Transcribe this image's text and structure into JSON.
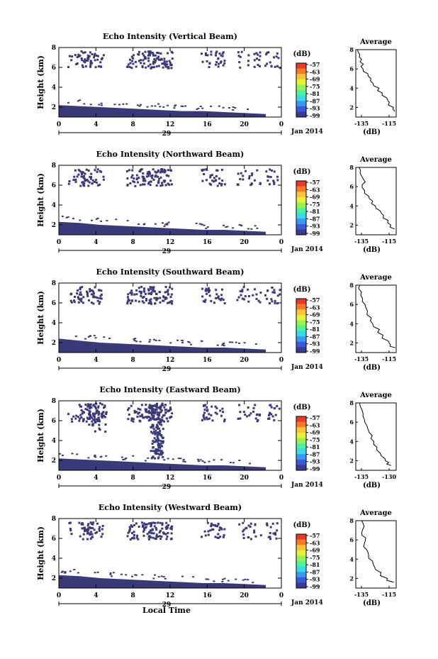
{
  "figure": {
    "date_label": "Jan 2014",
    "day_label": "29",
    "xlabel": "Local Time",
    "colorbar_unit": "(dB)",
    "colorbar_ticks": [
      "-57",
      "-63",
      "-69",
      "-75",
      "-81",
      "-87",
      "-93",
      "-99"
    ],
    "colorbar_colors": [
      "#e83a2a",
      "#f57a2a",
      "#f7c43a",
      "#e8f03a",
      "#9af05a",
      "#4ff0a0",
      "#3ad8e8",
      "#3a9af0",
      "#3a5ad8",
      "#3a3a90"
    ],
    "average_title": "Average",
    "average_xlabel": "(dB)",
    "echo_color": "#3a3a78"
  },
  "chart_data": [
    {
      "type": "heatmap",
      "title": "Echo Intensity (Vertical Beam)",
      "ylabel": "Height (km)",
      "xlim": [
        0,
        24
      ],
      "ylim": [
        1,
        8
      ],
      "x_ticks": [
        "0",
        "4",
        "8",
        "12",
        "16",
        "20",
        "0"
      ],
      "y_ticks": [
        "2",
        "4",
        "6",
        "8"
      ],
      "surface_layer_top_km": [
        2.2,
        2.1,
        2.0,
        1.9,
        1.8,
        1.7,
        1.6,
        1.6,
        1.5,
        1.4,
        1.3
      ],
      "average": {
        "type": "line",
        "xlim": [
          -138,
          -113
        ],
        "x_ticks": [
          "-135",
          "-115"
        ],
        "y_ticks": [
          "2",
          "4",
          "6",
          "8"
        ],
        "x": [
          -137,
          -136,
          -135,
          -134,
          -133,
          -131,
          -129,
          -127,
          -124,
          -122,
          -119,
          -117,
          -115,
          -114
        ],
        "y": [
          8,
          7.5,
          7,
          6.5,
          6,
          5.5,
          5,
          4.5,
          4,
          3.5,
          3,
          2.5,
          2,
          1.6
        ]
      }
    },
    {
      "type": "heatmap",
      "title": "Echo Intensity (Northward Beam)",
      "ylabel": "Height (km)",
      "xlim": [
        0,
        24
      ],
      "ylim": [
        1,
        8
      ],
      "x_ticks": [
        "0",
        "4",
        "8",
        "12",
        "16",
        "20",
        "0"
      ],
      "y_ticks": [
        "2",
        "4",
        "6",
        "8"
      ],
      "surface_layer_top_km": [
        2.3,
        2.2,
        2.0,
        1.9,
        1.8,
        1.7,
        1.6,
        1.5,
        1.5,
        1.4,
        1.3
      ],
      "average": {
        "type": "line",
        "xlim": [
          -138,
          -113
        ],
        "x_ticks": [
          "-135",
          "-115"
        ],
        "y_ticks": [
          "2",
          "4",
          "6",
          "8"
        ],
        "x": [
          -136,
          -135,
          -133,
          -134,
          -132,
          -130,
          -128,
          -126,
          -123,
          -121,
          -118,
          -116,
          -114
        ],
        "y": [
          8,
          7.4,
          6.8,
          6.2,
          5.6,
          5,
          4.5,
          4,
          3.5,
          3,
          2.5,
          2,
          1.6
        ]
      }
    },
    {
      "type": "heatmap",
      "title": "Echo Intensity (Southward Beam)",
      "ylabel": "Height (km)",
      "xlim": [
        0,
        24
      ],
      "ylim": [
        1,
        8
      ],
      "x_ticks": [
        "0",
        "4",
        "8",
        "12",
        "16",
        "20",
        "0"
      ],
      "y_ticks": [
        "2",
        "4",
        "6",
        "8"
      ],
      "surface_layer_top_km": [
        2.4,
        2.2,
        2.0,
        1.9,
        1.8,
        1.7,
        1.6,
        1.5,
        1.5,
        1.4,
        1.3
      ],
      "average": {
        "type": "line",
        "xlim": [
          -138,
          -113
        ],
        "x_ticks": [
          "-135",
          "-115"
        ],
        "y_ticks": [
          "2",
          "4",
          "6",
          "8"
        ],
        "x": [
          -136,
          -135,
          -134,
          -132,
          -131,
          -129,
          -127,
          -124,
          -121,
          -118,
          -116,
          -114
        ],
        "y": [
          8,
          7.3,
          6.6,
          6,
          5.3,
          4.6,
          4,
          3.4,
          2.8,
          2.2,
          1.8,
          1.5
        ]
      }
    },
    {
      "type": "heatmap",
      "title": "Echo Intensity (Eastward Beam)",
      "ylabel": "Height (km)",
      "xlim": [
        0,
        24
      ],
      "ylim": [
        1,
        8
      ],
      "x_ticks": [
        "0",
        "4",
        "8",
        "12",
        "16",
        "20",
        "0"
      ],
      "y_ticks": [
        "2",
        "4",
        "6",
        "8"
      ],
      "surface_layer_top_km": [
        2.2,
        2.1,
        2.0,
        1.9,
        1.8,
        1.7,
        1.6,
        1.5,
        1.5,
        1.4,
        1.3
      ],
      "average": {
        "type": "line",
        "xlim": [
          -138,
          -128
        ],
        "x_ticks": [
          "-135",
          "-130"
        ],
        "y_ticks": [
          "2",
          "4",
          "6",
          "8"
        ],
        "x": [
          -137,
          -136.5,
          -136,
          -135.5,
          -135,
          -134,
          -133.5,
          -133,
          -132,
          -131,
          -130,
          -129
        ],
        "y": [
          8,
          7.3,
          6.6,
          6,
          5.3,
          4.6,
          4,
          3.4,
          2.8,
          2.2,
          1.8,
          1.5
        ]
      }
    },
    {
      "type": "heatmap",
      "title": "Echo Intensity (Westward Beam)",
      "ylabel": "Height (km)",
      "xlim": [
        0,
        24
      ],
      "ylim": [
        1,
        8
      ],
      "x_ticks": [
        "0",
        "4",
        "8",
        "12",
        "16",
        "20",
        "0"
      ],
      "y_ticks": [
        "2",
        "4",
        "6",
        "8"
      ],
      "surface_layer_top_km": [
        2.3,
        2.2,
        2.0,
        1.9,
        1.8,
        1.7,
        1.6,
        1.5,
        1.5,
        1.4,
        1.3
      ],
      "average": {
        "type": "line",
        "xlim": [
          -138,
          -113
        ],
        "x_ticks": [
          "-135",
          "-115"
        ],
        "y_ticks": [
          "2",
          "4",
          "6",
          "8"
        ],
        "x": [
          -134,
          -133,
          -134,
          -132,
          -133,
          -131,
          -130,
          -128,
          -126,
          -122,
          -118,
          -115
        ],
        "y": [
          8,
          7.4,
          6.8,
          6.2,
          5.6,
          5,
          4.4,
          3.8,
          3.2,
          2.6,
          2,
          1.6
        ]
      }
    }
  ]
}
